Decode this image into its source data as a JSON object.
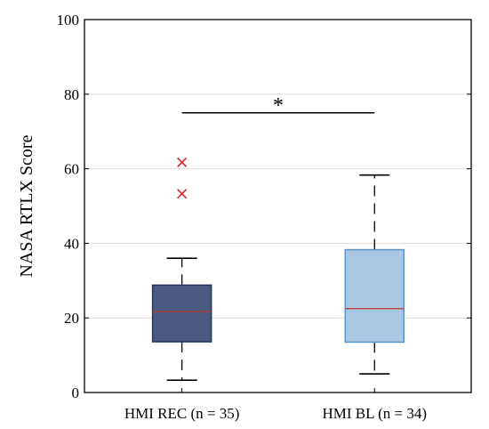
{
  "chart_data": {
    "type": "box",
    "title": "",
    "xlabel": "",
    "ylabel": "NASA RTLX Score",
    "ylim": [
      0,
      100
    ],
    "yticks": [
      0,
      20,
      40,
      60,
      80,
      100
    ],
    "ytick_labels": [
      "0",
      "20",
      "40",
      "60",
      "80",
      "100"
    ],
    "grid": "horizontal",
    "categories": [
      "HMI REC (n = 35)",
      "HMI BL (n = 34)"
    ],
    "boxes": [
      {
        "category": "HMI REC (n = 35)",
        "whisker_low": 3.3,
        "q1": 13.6,
        "median": 21.7,
        "q3": 28.8,
        "whisker_high": 36.0,
        "outliers": [
          61.7,
          53.3
        ],
        "fill": "#4a5a80",
        "edge": "#1f3564"
      },
      {
        "category": "HMI BL (n = 34)",
        "whisker_low": 5.0,
        "q1": 13.5,
        "median": 22.5,
        "q3": 38.3,
        "whisker_high": 58.3,
        "outliers": [],
        "fill": "#a9c6e2",
        "edge": "#5a96c8"
      }
    ],
    "median_color": "#c0392b",
    "outlier_color": "#e02020",
    "significance": {
      "label": "*",
      "y": 75,
      "from": 0,
      "to": 1
    }
  }
}
